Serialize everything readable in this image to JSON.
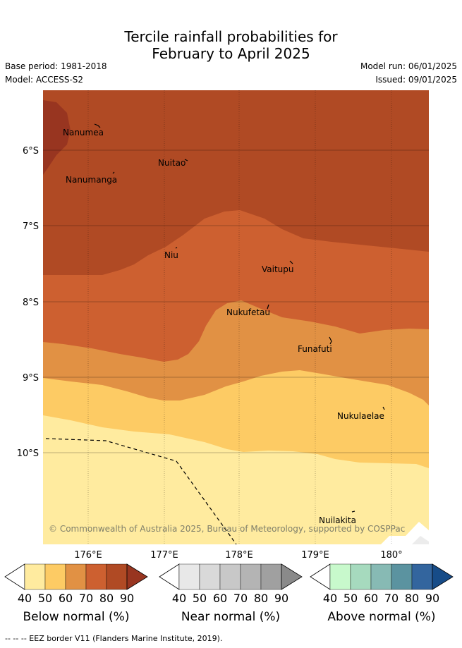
{
  "title": {
    "line1": "Tercile rainfall probabilities for",
    "line2": "February to April 2025"
  },
  "meta": {
    "base_period": "Base period: 1981-2018",
    "model": "Model: ACCESS-S2",
    "model_run": "Model run: 06/01/2025",
    "issued": "Issued: 09/01/2025"
  },
  "map": {
    "lat_labels": [
      "6°S",
      "7°S",
      "8°S",
      "9°S",
      "10°S"
    ],
    "lon_labels": [
      "176°E",
      "177°E",
      "178°E",
      "179°E",
      "180°"
    ],
    "islands": [
      "Nanumea",
      "Nuitao",
      "Nanumanga",
      "Niu",
      "Vaitupu",
      "Nukufetau",
      "Funafuti",
      "Nukulaelae",
      "Nuilakita"
    ],
    "copyright": "© Commonwealth of Australia 2025, Bureau of Meteorology, supported by COSPPac",
    "region_levels": [
      "80-90% below normal",
      "70-80% below normal",
      "60-70% below normal",
      "50-60% below normal",
      "40-50% below normal"
    ]
  },
  "legends": [
    {
      "title": "Below normal (%)",
      "ticks": [
        "40",
        "50",
        "60",
        "70",
        "80",
        "90"
      ],
      "colors": [
        "#ffeb9f",
        "#fdcb64",
        "#e19144",
        "#cd6030",
        "#b04a24"
      ],
      "over_color": "#983520"
    },
    {
      "title": "Near normal (%)",
      "ticks": [
        "40",
        "50",
        "60",
        "70",
        "80",
        "90"
      ],
      "colors": [
        "#e8e8e8",
        "#d9d9d9",
        "#c8c8c8",
        "#b4b4b4",
        "#a0a0a0"
      ],
      "over_color": "#8a8a8a"
    },
    {
      "title": "Above normal (%)",
      "ticks": [
        "40",
        "50",
        "60",
        "70",
        "80",
        "90"
      ],
      "colors": [
        "#c8f9cc",
        "#a6dabe",
        "#87bab4",
        "#5b93a0",
        "#33659e"
      ],
      "over_color": "#174c88"
    }
  ],
  "footer": {
    "eez_note": "--  --  -- EEZ border V11 (Flanders Marine Institute, 2019)."
  },
  "colors": {
    "band_90": "#983520",
    "band_80": "#b04a24",
    "band_70": "#cd6030",
    "band_60": "#e19144",
    "band_50": "#fdcb64",
    "band_40": "#ffeb9f"
  }
}
